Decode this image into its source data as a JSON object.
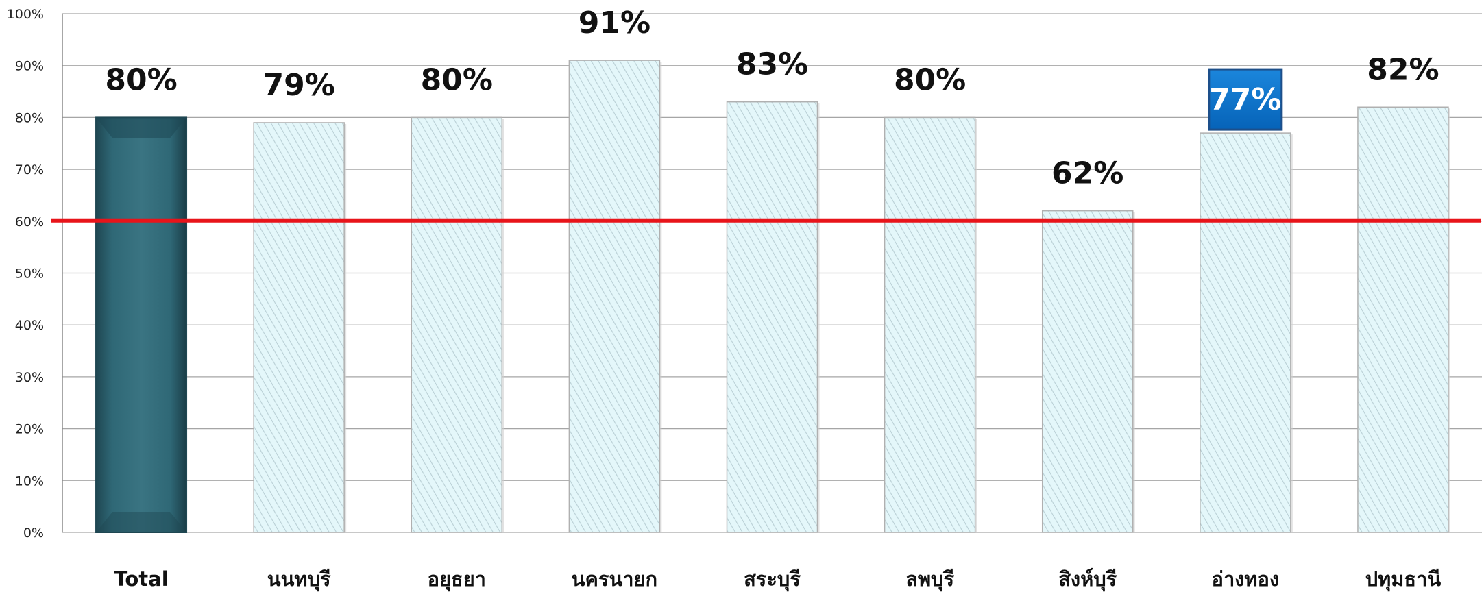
{
  "chart_data": {
    "type": "bar",
    "categories": [
      "Total",
      "นนทบุรี",
      "อยุธยา",
      "นครนายก",
      "สระบุรี",
      "ลพบุรี",
      "สิงห์บุรี",
      "อ่างทอง",
      "ปทุมธานี"
    ],
    "values": [
      80,
      79,
      80,
      91,
      83,
      80,
      62,
      77,
      82
    ],
    "data_labels": [
      "80%",
      "79%",
      "80%",
      "91%",
      "83%",
      "80%",
      "62%",
      "77%",
      "82%"
    ],
    "highlighted_label_index": 7,
    "y_ticks": [
      "0%",
      "10%",
      "20%",
      "30%",
      "40%",
      "50%",
      "60%",
      "70%",
      "80%",
      "90%",
      "100%"
    ],
    "ylim": [
      0,
      100
    ],
    "reference_line": 60,
    "grid": true,
    "legend": "none",
    "colors": {
      "total_bar": "#2e6472",
      "total_bar_dark": "#1f4752",
      "bar_fill": "#e4f7fa",
      "bar_hatch": "#b9cfd5",
      "bar_edge": "#b0b0b0",
      "reference_line": "#e8141a",
      "label_box": "#0a70c8",
      "label_box_border": "#1d4f8a",
      "gridline": "#a6a6a6"
    }
  }
}
